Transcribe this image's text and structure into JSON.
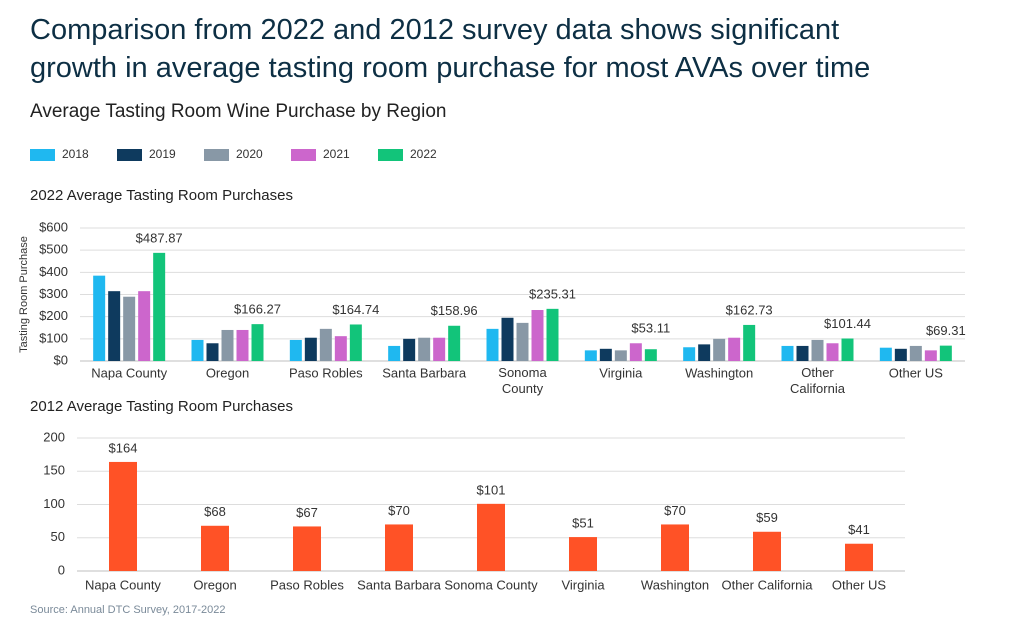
{
  "title": "Comparison from 2022 and 2012 survey data shows significant\ngrowth in average tasting room purchase for most AVAs over time",
  "subtitle": "Average Tasting Room Wine Purchase by Region",
  "source": "Source: Annual DTC Survey, 2017-2022",
  "chart_data": [
    {
      "type": "bar",
      "title": "2022 Average Tasting Room Purchases",
      "y_label": "Tasting Room Purchase",
      "categories": [
        "Napa County",
        "Oregon",
        "Paso Robles",
        "Santa Barbara",
        "Sonoma\nCounty",
        "Virginia",
        "Washington",
        "Other\nCalifornia",
        "Other US"
      ],
      "series": [
        {
          "name": "2018",
          "color": "#1fb8f0",
          "values": [
            385,
            95,
            95,
            68,
            145,
            48,
            62,
            68,
            60
          ]
        },
        {
          "name": "2019",
          "color": "#0e3a5e",
          "values": [
            315,
            80,
            105,
            100,
            195,
            55,
            75,
            68,
            55
          ]
        },
        {
          "name": "2020",
          "color": "#8898a6",
          "values": [
            290,
            140,
            145,
            105,
            172,
            48,
            100,
            95,
            68
          ]
        },
        {
          "name": "2021",
          "color": "#cc66cc",
          "values": [
            315,
            140,
            112,
            105,
            230,
            80,
            105,
            80,
            48
          ]
        },
        {
          "name": "2022",
          "color": "#12c47a",
          "values": [
            487.87,
            166.27,
            164.74,
            158.96,
            235.31,
            53.11,
            162.73,
            101.44,
            69.31
          ],
          "value_labels": [
            "$487.87",
            "$166.27",
            "$164.74",
            "$158.96",
            "$235.31",
            "$53.11",
            "$162.73",
            "$101.44",
            "$69.31"
          ]
        }
      ],
      "ylim": [
        0,
        600
      ],
      "yticks": [
        {
          "value": 0,
          "label": "$0"
        },
        {
          "value": 100,
          "label": "$100"
        },
        {
          "value": 200,
          "label": "$200"
        },
        {
          "value": 300,
          "label": "$300"
        },
        {
          "value": 400,
          "label": "$400"
        },
        {
          "value": 500,
          "label": "$500"
        },
        {
          "value": 600,
          "label": "$600"
        }
      ],
      "grid": true
    },
    {
      "type": "bar",
      "title": "2012 Average Tasting Room Purchases",
      "categories": [
        "Napa County",
        "Oregon",
        "Paso Robles",
        "Santa Barbara",
        "Sonoma County",
        "Virginia",
        "Washington",
        "Other California",
        "Other US"
      ],
      "values": [
        164,
        68,
        67,
        70,
        101,
        51,
        70,
        59,
        41
      ],
      "value_labels": [
        "$164",
        "$68",
        "$67",
        "$70",
        "$101",
        "$51",
        "$70",
        "$59",
        "$41"
      ],
      "color": "#ff5226",
      "ylim": [
        0,
        200
      ],
      "yticks": [
        0,
        50,
        100,
        150,
        200
      ],
      "grid": true
    }
  ]
}
